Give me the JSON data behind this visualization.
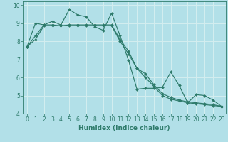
{
  "xlabel": "Humidex (Indice chaleur)",
  "bg_color": "#b2e0e8",
  "grid_color": "#d4eef0",
  "line_color": "#2d7a6a",
  "marker_color": "#2d7a6a",
  "xlim": [
    -0.5,
    23.5
  ],
  "ylim": [
    4,
    10.2
  ],
  "yticks": [
    4,
    5,
    6,
    7,
    8,
    9,
    10
  ],
  "xticks": [
    0,
    1,
    2,
    3,
    4,
    5,
    6,
    7,
    8,
    9,
    10,
    11,
    12,
    13,
    14,
    15,
    16,
    17,
    18,
    19,
    20,
    21,
    22,
    23
  ],
  "series1_x": [
    0,
    1,
    2,
    3,
    4,
    5,
    6,
    7,
    8,
    9,
    10,
    11,
    12,
    13,
    14,
    15,
    16,
    17,
    18,
    19,
    20,
    21,
    22,
    23
  ],
  "series1_y": [
    7.7,
    9.0,
    8.9,
    9.1,
    8.9,
    9.75,
    9.45,
    9.35,
    8.8,
    8.6,
    9.55,
    8.3,
    6.95,
    5.35,
    5.4,
    5.4,
    5.45,
    6.3,
    5.55,
    4.6,
    5.05,
    5.0,
    4.75,
    4.4
  ],
  "series2_x": [
    0,
    1,
    2,
    3,
    4,
    5,
    6,
    7,
    8,
    9,
    10,
    11,
    12,
    13,
    14,
    15,
    16,
    17,
    18,
    19,
    20,
    21,
    22,
    23
  ],
  "series2_y": [
    7.7,
    8.1,
    8.85,
    8.85,
    8.85,
    8.85,
    8.85,
    8.85,
    8.85,
    8.85,
    8.85,
    8.0,
    7.3,
    6.5,
    6.0,
    5.5,
    5.0,
    4.8,
    4.7,
    4.6,
    4.55,
    4.5,
    4.45,
    4.4
  ],
  "series3_x": [
    0,
    1,
    2,
    3,
    4,
    5,
    6,
    7,
    8,
    9,
    10,
    11,
    12,
    13,
    14,
    15,
    16,
    17,
    18,
    19,
    20,
    21,
    22,
    23
  ],
  "series3_y": [
    7.7,
    8.3,
    8.9,
    8.9,
    8.85,
    8.9,
    8.9,
    8.9,
    8.9,
    8.9,
    8.9,
    8.1,
    7.45,
    6.5,
    6.2,
    5.6,
    5.1,
    4.9,
    4.75,
    4.65,
    4.6,
    4.55,
    4.5,
    4.4
  ],
  "tick_fontsize": 5.5,
  "xlabel_fontsize": 6.5,
  "marker_size": 2.0,
  "line_width": 0.85
}
